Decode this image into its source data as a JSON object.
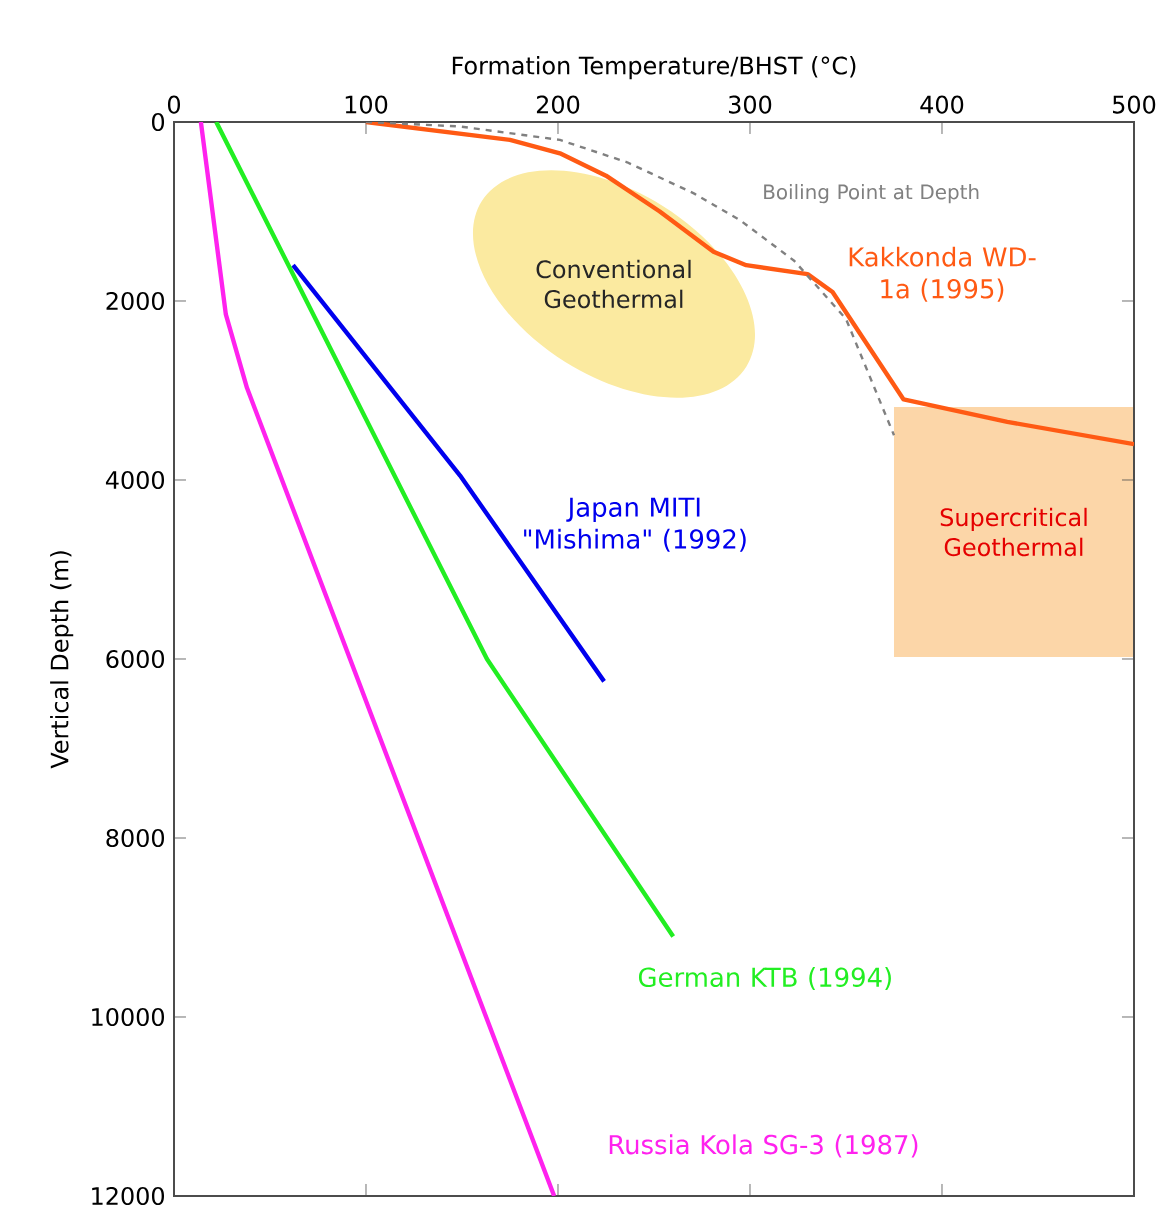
{
  "chart_data": {
    "type": "line",
    "xlabel": "Formation Temperature/BHST (°C)",
    "ylabel": "Vertical Depth (m)",
    "xlim": [
      0,
      500
    ],
    "xticks": [
      0,
      100,
      200,
      300,
      400,
      500
    ],
    "ylim": [
      12000,
      0
    ],
    "yticks": [
      0,
      2000,
      4000,
      6000,
      8000,
      10000,
      12000
    ],
    "marker": "none",
    "series": [
      {
        "name": "Kakkonda WD-1a (1995)",
        "color": "#ff5a14",
        "x": [
          100,
          175,
          201,
          225,
          253,
          281,
          298,
          330,
          343,
          380,
          434,
          500
        ],
        "values": [
          0,
          200,
          350,
          600,
          1000,
          1450,
          1600,
          1700,
          1900,
          3100,
          3350,
          3600
        ]
      },
      {
        "name": "Japan MITI \"Mishima\" (1992)",
        "color": "#0000ee",
        "x": [
          62,
          149,
          224
        ],
        "values": [
          1600,
          3950,
          6250
        ]
      },
      {
        "name": "German KTB (1994)",
        "color": "#22ee22",
        "x": [
          22,
          163,
          260
        ],
        "values": [
          0,
          6000,
          9100
        ]
      },
      {
        "name": "Russia Kola SG-3 (1987)",
        "color": "#ff22ee",
        "x": [
          14,
          27,
          38,
          198
        ],
        "values": [
          0,
          2150,
          2970,
          12000
        ]
      },
      {
        "name": "Boiling Point at Depth",
        "color": "#808080",
        "line_style": "dashed",
        "x": [
          100,
          149,
          201,
          236,
          271,
          295,
          323,
          350,
          375
        ],
        "values": [
          0,
          50,
          200,
          450,
          800,
          1100,
          1550,
          2200,
          3500
        ]
      }
    ],
    "annotations": [
      "Conventional Geothermal",
      "Supercritical Geothermal"
    ]
  }
}
